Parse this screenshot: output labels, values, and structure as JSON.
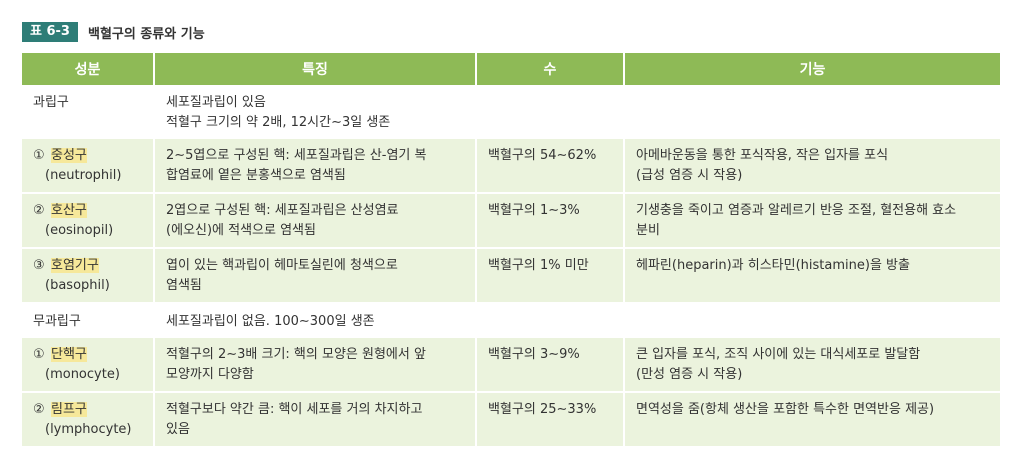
{
  "caption": {
    "badge": "표 6-3",
    "title": "백혈구의 종류와 기능"
  },
  "headers": [
    "성분",
    "특징",
    "수",
    "기능"
  ],
  "rows": [
    {
      "type": "group",
      "name": "과립구",
      "feature": "세포질과립이 있음\n적혈구 크기의 약 2배, 12시간∼3일 생존",
      "count": "",
      "function": ""
    },
    {
      "type": "sub",
      "num": "①",
      "name": "중성구",
      "en": "(neutrophil)",
      "feature": "2∼5엽으로 구성된 핵: 세포질과립은 산-염기 복\n합염료에 옅은 분홍색으로 염색됨",
      "count": "백혈구의 54∼62%",
      "function": "아메바운동을 통한 포식작용, 작은 입자를 포식\n(급성 염증 시 작용)"
    },
    {
      "type": "sub",
      "num": "②",
      "name": "호산구",
      "en": "(eosinopil)",
      "feature": "2엽으로 구성된 핵: 세포질과립은 산성염료\n(에오신)에 적색으로 염색됨",
      "count": "백혈구의 1∼3%",
      "function": "기생충을 죽이고 염증과 알레르기 반응 조절, 혈전용해 효소\n분비"
    },
    {
      "type": "sub",
      "num": "③",
      "name": "호염기구",
      "en": "(basophil)",
      "feature": "엽이 있는 핵과립이 헤마토실린에 청색으로\n염색됨",
      "count": "백혈구의 1% 미만",
      "function": "헤파린(heparin)과 히스타민(histamine)을 방출"
    },
    {
      "type": "group",
      "name": "무과립구",
      "feature": "세포질과립이 없음. 100∼300일 생존",
      "count": "",
      "function": ""
    },
    {
      "type": "sub",
      "num": "①",
      "name": "단핵구",
      "en": "(monocyte)",
      "feature": "적혈구의 2∼3배 크기: 핵의 모양은 원형에서 앞\n모양까지 다양함",
      "count": "백혈구의 3∼9%",
      "function": "큰 입자를 포식, 조직 사이에 있는 대식세포로 발달함\n(만성 염증 시 작용)"
    },
    {
      "type": "sub",
      "num": "②",
      "name": "림프구",
      "en": "(lymphocyte)",
      "feature": "적혈구보다 약간 큼: 핵이 세포를 거의 차지하고\n있음",
      "count": "백혈구의 25∼33%",
      "function": "면역성을 줌(항체 생산을 포함한 특수한 면역반응 제공)"
    }
  ]
}
